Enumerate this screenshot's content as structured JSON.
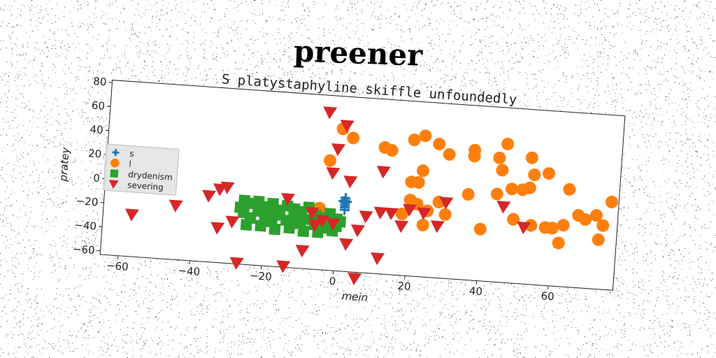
{
  "suptitle": "preener",
  "chart_data": {
    "type": "scatter",
    "title": "S platystaphyline skiffle unfoundedly",
    "xlabel": "mein",
    "ylabel": "pratey",
    "xlim": [
      -65,
      78
    ],
    "ylim": [
      -63,
      82
    ],
    "xticks": [
      -60,
      -40,
      -20,
      0,
      20,
      40,
      60
    ],
    "yticks": [
      -60,
      -40,
      -20,
      0,
      20,
      40,
      60,
      80
    ],
    "legend_position": "center-left",
    "grid": false,
    "series": [
      {
        "name": "s",
        "marker": "plus",
        "color": "#1f77b4",
        "points": [
          [
            2,
            -2
          ],
          [
            2,
            -4
          ],
          [
            2,
            -6
          ],
          [
            2,
            -8
          ],
          [
            1.5,
            -5
          ],
          [
            2.5,
            -5
          ],
          [
            2,
            -10
          ],
          [
            2,
            -12
          ]
        ]
      },
      {
        "name": "l",
        "marker": "circle",
        "color": "#ff7f0e",
        "points": [
          [
            0,
            55
          ],
          [
            3,
            48
          ],
          [
            12,
            42
          ],
          [
            14,
            40
          ],
          [
            -3,
            28
          ],
          [
            20,
            50
          ],
          [
            23,
            54
          ],
          [
            27,
            48
          ],
          [
            30,
            40
          ],
          [
            37,
            45
          ],
          [
            37,
            40
          ],
          [
            44,
            40
          ],
          [
            45,
            30
          ],
          [
            46,
            52
          ],
          [
            53,
            42
          ],
          [
            54,
            28
          ],
          [
            58,
            30
          ],
          [
            23,
            25
          ],
          [
            20,
            15
          ],
          [
            22,
            15
          ],
          [
            20,
            0
          ],
          [
            22,
            -3
          ],
          [
            25,
            -8
          ],
          [
            28,
            0
          ],
          [
            30,
            -10
          ],
          [
            18,
            -12
          ],
          [
            24,
            -20
          ],
          [
            36,
            8
          ],
          [
            40,
            -20
          ],
          [
            44,
            10
          ],
          [
            48,
            15
          ],
          [
            51,
            15
          ],
          [
            53,
            17
          ],
          [
            49,
            -10
          ],
          [
            54,
            -14
          ],
          [
            58,
            -15
          ],
          [
            60,
            -15
          ],
          [
            63,
            -12
          ],
          [
            62,
            -27
          ],
          [
            64,
            18
          ],
          [
            67,
            -3
          ],
          [
            69,
            -6
          ],
          [
            72,
            -2
          ],
          [
            74,
            -10
          ],
          [
            73,
            -22
          ],
          [
            76,
            10
          ],
          [
            -5,
            -12
          ]
        ]
      },
      {
        "name": "drydenism",
        "marker": "square",
        "color": "#2ca02c",
        "points": [
          [
            -26,
            -10
          ],
          [
            -24,
            -12
          ],
          [
            -22,
            -10
          ],
          [
            -20,
            -14
          ],
          [
            -18,
            -11
          ],
          [
            -16,
            -16
          ],
          [
            -14,
            -12
          ],
          [
            -12,
            -14
          ],
          [
            -10,
            -16
          ],
          [
            -8,
            -12
          ],
          [
            -6,
            -18
          ],
          [
            -4,
            -20
          ],
          [
            -2,
            -16
          ],
          [
            0,
            -20
          ],
          [
            -26,
            -20
          ],
          [
            -24,
            -24
          ],
          [
            -22,
            -18
          ],
          [
            -20,
            -22
          ],
          [
            -18,
            -26
          ],
          [
            -16,
            -20
          ],
          [
            -14,
            -24
          ],
          [
            -12,
            -22
          ],
          [
            -10,
            -26
          ],
          [
            -8,
            -22
          ],
          [
            -6,
            -26
          ],
          [
            -4,
            -24
          ],
          [
            -2,
            -28
          ],
          [
            0,
            -26
          ],
          [
            -25,
            -30
          ],
          [
            -21,
            -30
          ],
          [
            -17,
            -32
          ],
          [
            -13,
            -30
          ],
          [
            -9,
            -32
          ],
          [
            -5,
            -32
          ],
          [
            -1,
            -30
          ],
          [
            1,
            -22
          ],
          [
            -27,
            -16
          ],
          [
            -19,
            -17
          ],
          [
            -11,
            -19
          ],
          [
            -3,
            -21
          ]
        ]
      },
      {
        "name": "severing",
        "marker": "triangle_down",
        "color": "#d62728",
        "points": [
          [
            -4,
            68
          ],
          [
            1,
            58
          ],
          [
            -1,
            38
          ],
          [
            -2,
            18
          ],
          [
            3,
            12
          ],
          [
            12,
            22
          ],
          [
            -14,
            -6
          ],
          [
            -33,
            -2
          ],
          [
            -31,
            0
          ],
          [
            -36,
            -8
          ],
          [
            -45,
            -18
          ],
          [
            -57,
            -28
          ],
          [
            -29,
            -28
          ],
          [
            -33,
            -34
          ],
          [
            -27,
            -62
          ],
          [
            -14,
            -62
          ],
          [
            -9,
            -48
          ],
          [
            -7,
            -16
          ],
          [
            -4,
            -22
          ],
          [
            -1,
            -24
          ],
          [
            3,
            -40
          ],
          [
            6,
            -28
          ],
          [
            8,
            -16
          ],
          [
            12,
            -12
          ],
          [
            15,
            -12
          ],
          [
            18,
            -22
          ],
          [
            20,
            -8
          ],
          [
            24,
            -10
          ],
          [
            28,
            -20
          ],
          [
            30,
            0
          ],
          [
            12,
            -50
          ],
          [
            6,
            -68
          ],
          [
            46,
            0
          ],
          [
            52,
            -16
          ],
          [
            -6,
            -26
          ]
        ]
      }
    ]
  }
}
